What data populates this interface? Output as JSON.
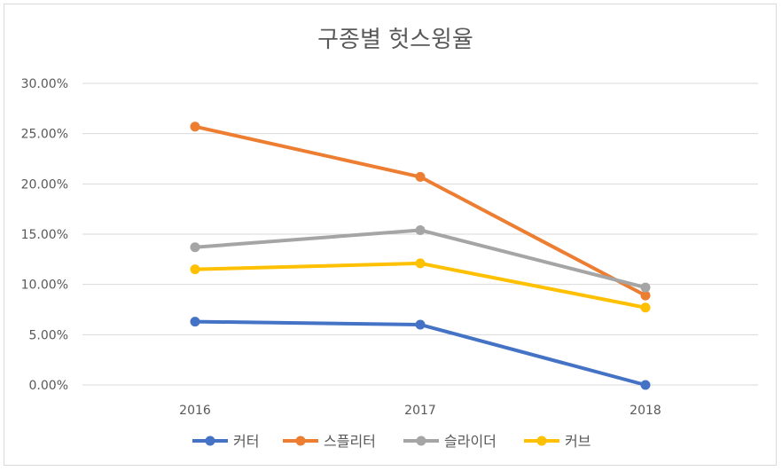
{
  "chart_data": {
    "type": "line",
    "title": "구종별 헛스윙율",
    "categories": [
      "2016",
      "2017",
      "2018"
    ],
    "y_ticks": [
      "0.00%",
      "5.00%",
      "10.00%",
      "15.00%",
      "20.00%",
      "25.00%",
      "30.00%"
    ],
    "ylim": [
      0,
      0.3
    ],
    "xlabel": "",
    "ylabel": "",
    "grid": true,
    "legend_position": "bottom",
    "series": [
      {
        "name": "커터",
        "color": "#4472C4",
        "values": [
          0.063,
          0.06,
          0.0
        ]
      },
      {
        "name": "스플리터",
        "color": "#ED7D31",
        "values": [
          0.257,
          0.207,
          0.089
        ]
      },
      {
        "name": "슬라이더",
        "color": "#A5A5A5",
        "values": [
          0.137,
          0.154,
          0.097
        ]
      },
      {
        "name": "커브",
        "color": "#FFC000",
        "values": [
          0.115,
          0.121,
          0.077
        ]
      }
    ]
  }
}
